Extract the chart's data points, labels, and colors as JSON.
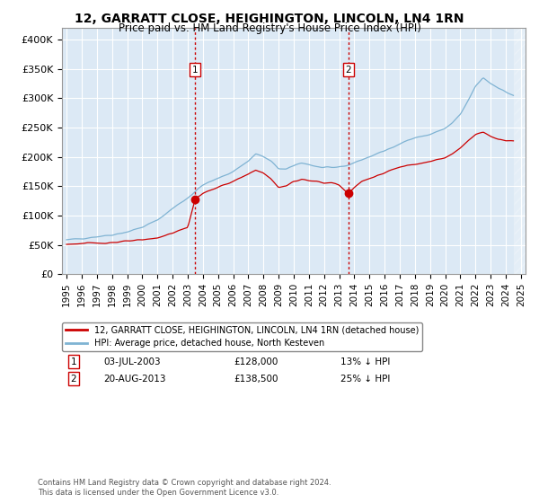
{
  "title": "12, GARRATT CLOSE, HEIGHINGTON, LINCOLN, LN4 1RN",
  "subtitle": "Price paid vs. HM Land Registry's House Price Index (HPI)",
  "title_fontsize": 10,
  "subtitle_fontsize": 8.5,
  "ylabel_ticks": [
    "£0",
    "£50K",
    "£100K",
    "£150K",
    "£200K",
    "£250K",
    "£300K",
    "£350K",
    "£400K"
  ],
  "ytick_values": [
    0,
    50000,
    100000,
    150000,
    200000,
    250000,
    300000,
    350000,
    400000
  ],
  "ylim": [
    0,
    420000
  ],
  "xlim_start": 1994.7,
  "xlim_end": 2025.3,
  "background_color": "#ffffff",
  "plot_bg_color": "#dce9f5",
  "grid_color": "#ffffff",
  "sale1_year": 2003.5,
  "sale1_price": 128000,
  "sale1_label": "03-JUL-2003",
  "sale1_amount": "£128,000",
  "sale1_pct": "13% ↓ HPI",
  "sale2_year": 2013.6,
  "sale2_price": 138500,
  "sale2_label": "20-AUG-2013",
  "sale2_amount": "£138,500",
  "sale2_pct": "25% ↓ HPI",
  "red_line_color": "#cc0000",
  "blue_line_color": "#7fb3d3",
  "marker_box_color": "#cc0000",
  "legend1_label": "12, GARRATT CLOSE, HEIGHINGTON, LINCOLN, LN4 1RN (detached house)",
  "legend2_label": "HPI: Average price, detached house, North Kesteven",
  "footnote": "Contains HM Land Registry data © Crown copyright and database right 2024.\nThis data is licensed under the Open Government Licence v3.0."
}
